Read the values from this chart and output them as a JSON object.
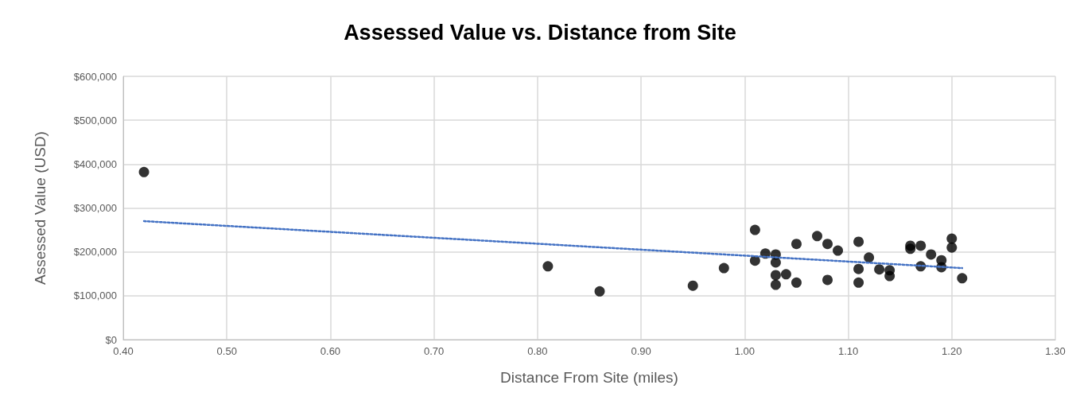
{
  "chart_data": {
    "type": "scatter",
    "title": "Assessed Value vs. Distance from Site",
    "xlabel": "Distance From Site (miles)",
    "ylabel": "Assessed Value (USD)",
    "xlim": [
      0.4,
      1.3
    ],
    "xticks": [
      {
        "value": 0.4,
        "label": "0.40"
      },
      {
        "value": 0.5,
        "label": "0.50"
      },
      {
        "value": 0.6,
        "label": "0.60"
      },
      {
        "value": 0.7,
        "label": "0.70"
      },
      {
        "value": 0.8,
        "label": "0.80"
      },
      {
        "value": 0.9,
        "label": "0.90"
      },
      {
        "value": 1.0,
        "label": "1.00"
      },
      {
        "value": 1.1,
        "label": "1.10"
      },
      {
        "value": 1.2,
        "label": "1.20"
      },
      {
        "value": 1.3,
        "label": "1.30"
      }
    ],
    "ylim": [
      0,
      600000
    ],
    "yticks": [
      {
        "value": 0,
        "label": "$0"
      },
      {
        "value": 100000,
        "label": "$100,000"
      },
      {
        "value": 200000,
        "label": "$200,000"
      },
      {
        "value": 300000,
        "label": "$300,000"
      },
      {
        "value": 400000,
        "label": "$400,000"
      },
      {
        "value": 500000,
        "label": "$500,000"
      },
      {
        "value": 600000,
        "label": "$600,000"
      }
    ],
    "grid": true,
    "marker": "circle",
    "series": [
      {
        "color": "#000000",
        "x": [
          0.42,
          0.81,
          0.86,
          0.95,
          0.98,
          1.01,
          1.01,
          1.02,
          1.03,
          1.03,
          1.03,
          1.03,
          1.04,
          1.05,
          1.05,
          1.07,
          1.08,
          1.08,
          1.09,
          1.11,
          1.11,
          1.11,
          1.12,
          1.13,
          1.14,
          1.14,
          1.16,
          1.16,
          1.17,
          1.17,
          1.18,
          1.19,
          1.19,
          1.2,
          1.2,
          1.21
        ],
        "values": [
          382000,
          167000,
          110000,
          123000,
          163000,
          250000,
          180000,
          196000,
          194000,
          176000,
          147000,
          125000,
          149000,
          218000,
          130000,
          236000,
          218000,
          136000,
          203000,
          223000,
          161000,
          130000,
          187000,
          160000,
          145000,
          158000,
          214000,
          207000,
          214000,
          167000,
          194000,
          181000,
          165000,
          230000,
          210000,
          140000
        ]
      },
      {
        "type": "line",
        "color": "#4472c4",
        "line_style": "dotted",
        "marker": "none",
        "x": [
          0.42,
          1.21
        ],
        "values": [
          270000,
          163000
        ]
      }
    ]
  }
}
